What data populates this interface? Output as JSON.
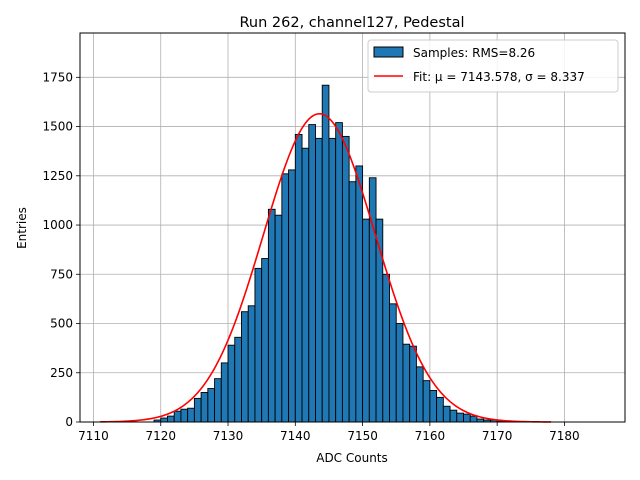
{
  "chart_data": {
    "type": "bar",
    "title": "Run 262, channel127, Pedestal",
    "xlabel": "ADC Counts",
    "ylabel": "Entries",
    "xlim": [
      7108.0,
      7189.0
    ],
    "ylim": [
      0,
      1975
    ],
    "xticks": [
      7110,
      7120,
      7130,
      7140,
      7150,
      7160,
      7170,
      7180
    ],
    "yticks": [
      0,
      250,
      500,
      750,
      1000,
      1250,
      1500,
      1750
    ],
    "grid": true,
    "legend": {
      "placement": "top-right",
      "entries": [
        {
          "label": "Samples: RMS=8.26",
          "kind": "patch",
          "color": "#1f77b4"
        },
        {
          "label": "Fit: μ = 7143.578, σ = 8.337",
          "kind": "line",
          "color": "#ff0000"
        }
      ]
    },
    "histogram": {
      "name": "Samples: RMS=8.26",
      "color": "#1f77b4",
      "edgecolor": "#000000",
      "bin_edges": [
        7119.0,
        7120.0,
        7121.0,
        7122.0,
        7123.0,
        7124.0,
        7125.0,
        7126.0,
        7127.0,
        7128.0,
        7129.0,
        7130.0,
        7131.0,
        7132.0,
        7133.0,
        7134.0,
        7135.0,
        7136.0,
        7137.0,
        7138.0,
        7139.0,
        7140.0,
        7141.0,
        7142.0,
        7143.0,
        7144.0,
        7145.0,
        7146.0,
        7147.0,
        7148.0,
        7149.0,
        7150.0,
        7151.0,
        7152.0,
        7153.0,
        7154.0,
        7155.0,
        7156.0,
        7157.0,
        7158.0,
        7159.0,
        7160.0,
        7161.0,
        7162.0,
        7163.0,
        7164.0,
        7165.0,
        7166.0,
        7167.0,
        7168.0,
        7169.0,
        7170.0,
        7171.0,
        7172.0,
        7173.0,
        7174.0
      ],
      "counts": [
        10,
        20,
        30,
        55,
        65,
        70,
        120,
        150,
        170,
        220,
        300,
        390,
        430,
        560,
        590,
        780,
        830,
        1080,
        1050,
        1260,
        1280,
        1460,
        1390,
        1510,
        1440,
        1710,
        1440,
        1520,
        1450,
        1220,
        1300,
        1030,
        1240,
        1030,
        750,
        600,
        500,
        395,
        385,
        280,
        210,
        160,
        125,
        80,
        60,
        45,
        40,
        30,
        15,
        10,
        10,
        5,
        5,
        3,
        2
      ]
    },
    "fit": {
      "name": "Fit: μ = 7143.578, σ = 8.337",
      "color": "#ff0000",
      "mu": 7143.578,
      "sigma": 8.337,
      "amplitude": 1565,
      "x_range": [
        7111,
        7178
      ]
    }
  }
}
